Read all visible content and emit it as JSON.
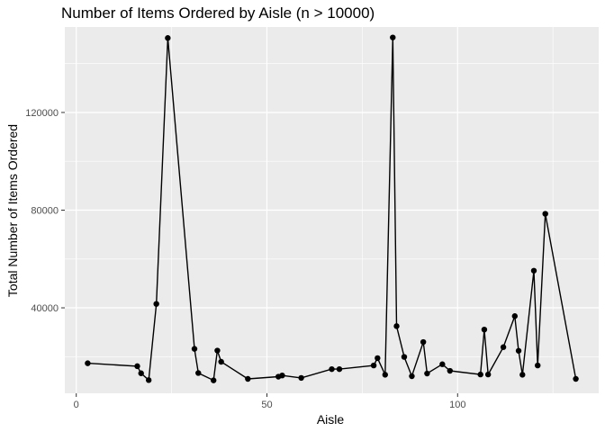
{
  "chart_data": {
    "type": "line",
    "title": "Number of Items Ordered by Aisle (n > 10000)",
    "xlabel": "Aisle",
    "ylabel": "Total Number of Items Ordered",
    "xlim": [
      -3,
      137
    ],
    "ylim": [
      5000,
      155000
    ],
    "xticks": [
      0,
      50,
      100
    ],
    "yticks": [
      40000,
      80000,
      120000
    ],
    "ytick_labels": [
      "40000",
      "80000",
      "120000"
    ],
    "grid": true,
    "panel_color": "#ebebeb",
    "grid_color": "#ffffff",
    "line_color": "#000000",
    "x": [
      3,
      16,
      17,
      19,
      21,
      24,
      31,
      32,
      36,
      37,
      38,
      45,
      53,
      54,
      59,
      67,
      69,
      78,
      79,
      81,
      83,
      84,
      86,
      88,
      91,
      92,
      96,
      98,
      106,
      107,
      108,
      112,
      115,
      116,
      117,
      120,
      121,
      123,
      131
    ],
    "y": [
      17300,
      16100,
      13200,
      10400,
      41600,
      150500,
      23200,
      13300,
      10300,
      22500,
      17900,
      10900,
      11800,
      12300,
      11300,
      14900,
      14900,
      16400,
      19400,
      12600,
      150700,
      32500,
      19900,
      12000,
      26000,
      13100,
      16900,
      14200,
      12700,
      31100,
      12700,
      23900,
      36600,
      22400,
      12600,
      55200,
      16400,
      78500,
      10900
    ]
  }
}
